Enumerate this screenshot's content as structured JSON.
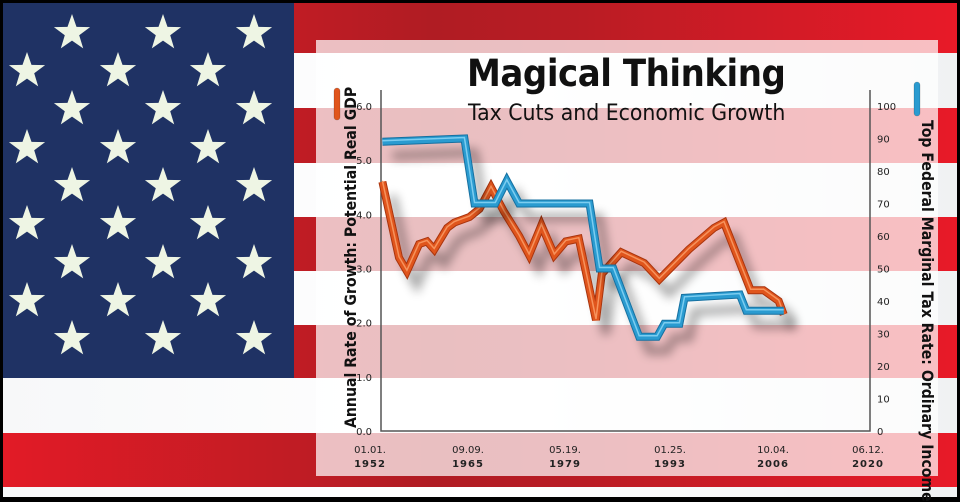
{
  "background": {
    "type": "us-flag",
    "colors": {
      "red": "#c41e26",
      "white": "#ffffff",
      "blue": "#1f3264",
      "star": "#eef5e4"
    },
    "stars_rows": 7
  },
  "chart_data": {
    "type": "line",
    "title": "Magical Thinking",
    "subtitle": "Tax Cuts and Economic Growth",
    "xlabel": "",
    "x_tick_labels": [
      {
        "date": "01.01.",
        "year": "1952"
      },
      {
        "date": "09.09.",
        "year": "1965"
      },
      {
        "date": "05.19.",
        "year": "1979"
      },
      {
        "date": "01.25.",
        "year": "1993"
      },
      {
        "date": "10.04.",
        "year": "2006"
      },
      {
        "date": "06.12.",
        "year": "2020"
      }
    ],
    "xlim": [
      1952,
      2020
    ],
    "left_axis": {
      "label": "Annual Rate of Growth: Potential Real GDP",
      "ticks": [
        "0.0",
        "1.0",
        "2.0",
        "3.0",
        "4.0",
        "5.0",
        "6.0"
      ],
      "ylim": [
        0,
        6
      ],
      "color": "#e0541f"
    },
    "right_axis": {
      "label": "Top Federal Marginal Tax Rate: Ordinary Income",
      "ticks": [
        "0",
        "10",
        "20",
        "30",
        "40",
        "50",
        "60",
        "70",
        "80",
        "90",
        "100"
      ],
      "ylim": [
        0,
        100
      ],
      "color": "#2a9bd0"
    },
    "grid": false,
    "legend": "axis-colored line markers next to each axis label",
    "series": [
      {
        "name": "Annual Rate of Growth: Potential Real GDP",
        "axis": "left",
        "color": "#e0541f",
        "x": [
          1952.2,
          1954.5,
          1955.6,
          1957.3,
          1958.4,
          1959.4,
          1961.2,
          1962.2,
          1964.3,
          1965.7,
          1967.3,
          1969.1,
          1971.2,
          1972.6,
          1974.3,
          1976.1,
          1977.7,
          1979.5,
          1981.9,
          1982.7,
          1985.4,
          1988.6,
          1990.7,
          1994.8,
          1998.3,
          1999.7,
          2003.4,
          2005.2,
          2007.3,
          2008.0
        ],
        "values": [
          4.6,
          3.2,
          2.95,
          3.45,
          3.5,
          3.35,
          3.75,
          3.85,
          3.95,
          4.1,
          4.5,
          4.05,
          3.6,
          3.25,
          3.8,
          3.25,
          3.5,
          3.55,
          2.05,
          2.9,
          3.3,
          3.1,
          2.8,
          3.35,
          3.75,
          3.85,
          2.6,
          2.6,
          2.4,
          2.15
        ]
      },
      {
        "name": "Top Federal Marginal Tax Rate: Ordinary Income",
        "axis": "right",
        "color": "#2a9bd0",
        "x": [
          1952.2,
          1963.6,
          1965.0,
          1967.9,
          1969.5,
          1971.2,
          1981.0,
          1982.4,
          1984.3,
          1987.9,
          1990.4,
          1991.4,
          1993.5,
          1994.2,
          2001.9,
          2002.8,
          2008.0
        ],
        "values": [
          89,
          90,
          70,
          70,
          77,
          70,
          70,
          50,
          50,
          29,
          29,
          33,
          33,
          41,
          42,
          37,
          37
        ]
      }
    ]
  }
}
